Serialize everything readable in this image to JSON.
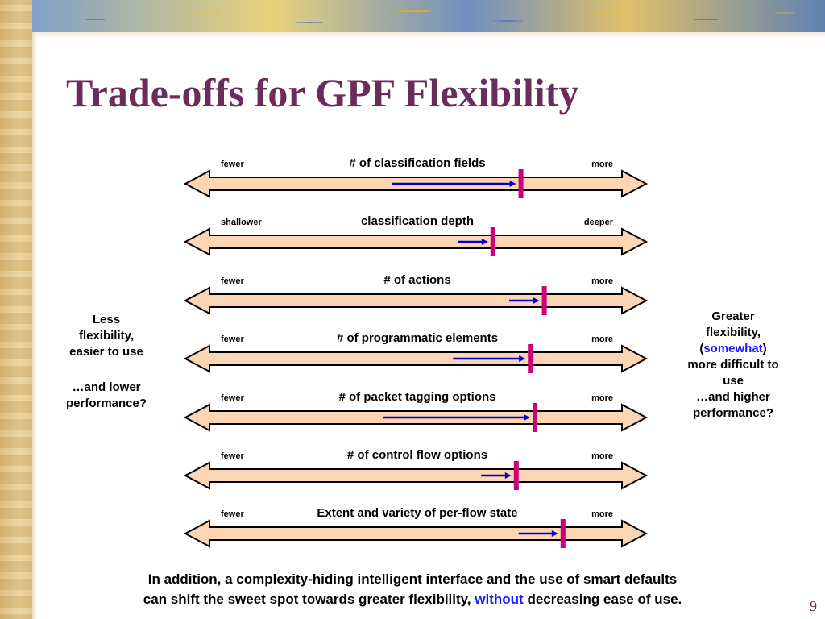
{
  "slide": {
    "title": "Trade-offs for GPF Flexibility",
    "page_number": "9",
    "left_text": {
      "line1": "Less",
      "line2": "flexibility,",
      "line3": "easier to use",
      "line4": "…and lower",
      "line5": "performance?"
    },
    "right_text": {
      "line1": "Greater",
      "line2": "flexibility,",
      "line3_open": "(",
      "line3_highlight": "somewhat",
      "line3_close": ")",
      "line4": "more difficult to",
      "line5": "use",
      "line6": "…and higher",
      "line7": "performance?"
    },
    "bottom_note": {
      "line1": "In addition, a complexity-hiding intelligent interface and the use of smart defaults",
      "line2_start": "can shift the sweet spot towards greater flexibility, ",
      "line2_highlight": "without",
      "line2_end": " decreasing ease of use."
    },
    "colors": {
      "title": "#6b2c5c",
      "arrow_fill": "#fcd5b5",
      "arrow_stroke": "#000000",
      "shift_arrow": "#0000cc",
      "marker": "#cc0077",
      "highlight_text": "#1a1aff"
    },
    "rows": [
      {
        "label": "# of classification fields",
        "left": "fewer",
        "right": "more",
        "arrow_from": 0.45,
        "marker": 0.72
      },
      {
        "label": "classification depth",
        "left": "shallower",
        "right": "deeper",
        "arrow_from": 0.59,
        "marker": 0.66
      },
      {
        "label": "# of actions",
        "left": "fewer",
        "right": "more",
        "arrow_from": 0.7,
        "marker": 0.77
      },
      {
        "label": "# of programmatic elements",
        "left": "fewer",
        "right": "more",
        "arrow_from": 0.58,
        "marker": 0.74
      },
      {
        "label": "# of packet tagging options",
        "left": "fewer",
        "right": "more",
        "arrow_from": 0.43,
        "marker": 0.75
      },
      {
        "label": "# of control flow options",
        "left": "fewer",
        "right": "more",
        "arrow_from": 0.64,
        "marker": 0.71
      },
      {
        "label": "Extent and variety of per-flow state",
        "left": "fewer",
        "right": "more",
        "arrow_from": 0.72,
        "marker": 0.81
      }
    ]
  }
}
